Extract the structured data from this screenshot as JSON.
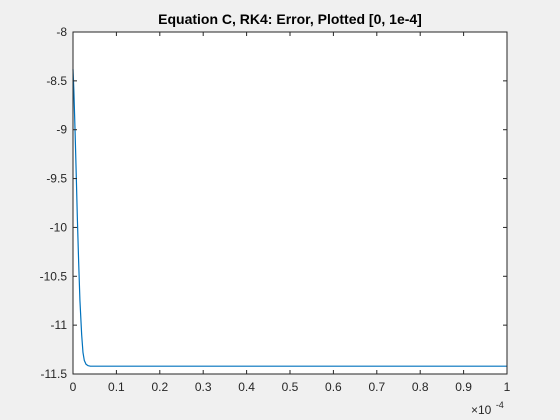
{
  "colors": {
    "figure_background": "#f0f0f0",
    "axes_background": "#ffffff",
    "axis_color": "#262626",
    "line_color": "#0072bd"
  },
  "chart_data": {
    "type": "line",
    "title": "Equation C, RK4: Error, Plotted [0, 1e-4]",
    "xlabel": "",
    "ylabel": "",
    "x_scale_base": "×10",
    "x_scale_exponent": "-4",
    "xlim": [
      0,
      1
    ],
    "ylim": [
      -11.5,
      -8
    ],
    "grid": false,
    "box": true,
    "xticks": [
      0,
      0.1,
      0.2,
      0.3,
      0.4,
      0.5,
      0.6,
      0.7,
      0.8,
      0.9,
      1
    ],
    "xtick_labels": [
      "0",
      "0.1",
      "0.2",
      "0.3",
      "0.4",
      "0.5",
      "0.6",
      "0.7",
      "0.8",
      "0.9",
      "1"
    ],
    "yticks": [
      -8,
      -8.5,
      -9,
      -9.5,
      -10,
      -10.5,
      -11,
      -11.5
    ],
    "ytick_labels": [
      "-8",
      "-8.5",
      "-9",
      "-9.5",
      "-10",
      "-10.5",
      "-11",
      "-11.5"
    ],
    "series": [
      {
        "x": [
          0,
          0.002,
          0.005,
          0.008,
          0.01,
          0.013,
          0.016,
          0.02,
          0.023,
          0.026,
          0.03,
          0.035,
          0.04,
          0.05,
          0.07,
          0.1,
          0.2,
          0.3,
          0.4,
          0.5,
          0.6,
          0.7,
          0.8,
          0.9,
          1
        ],
        "y": [
          -8.38,
          -8.6,
          -9.05,
          -9.55,
          -9.9,
          -10.35,
          -10.75,
          -11.1,
          -11.28,
          -11.36,
          -11.4,
          -11.415,
          -11.42,
          -11.42,
          -11.42,
          -11.42,
          -11.42,
          -11.42,
          -11.42,
          -11.42,
          -11.42,
          -11.42,
          -11.42,
          -11.42,
          -11.42
        ]
      }
    ]
  }
}
